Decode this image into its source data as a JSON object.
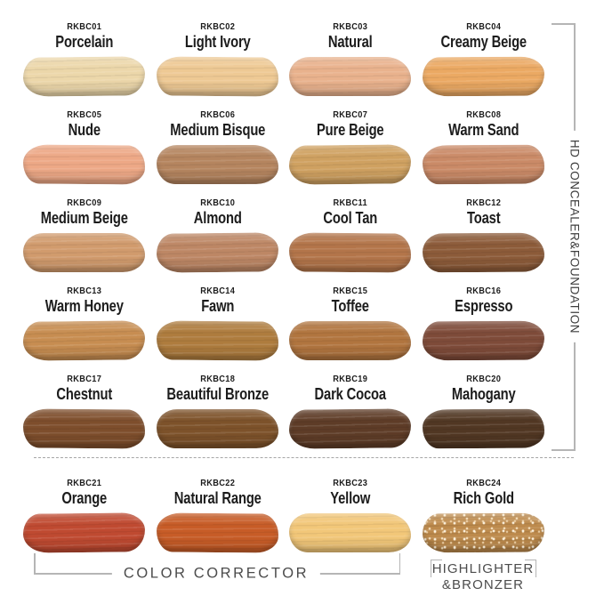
{
  "swatches": [
    {
      "code": "RKBC01",
      "name": "Porcelain",
      "color": "#ecd7aa"
    },
    {
      "code": "RKBC02",
      "name": "Light Ivory",
      "color": "#eec994"
    },
    {
      "code": "RKBC03",
      "name": "Natural",
      "color": "#e9b28d"
    },
    {
      "code": "RKBC04",
      "name": "Creamy Beige",
      "color": "#eba963"
    },
    {
      "code": "RKBC05",
      "name": "Nude",
      "color": "#eda886"
    },
    {
      "code": "RKBC06",
      "name": "Medium Bisque",
      "color": "#b5855f"
    },
    {
      "code": "RKBC07",
      "name": "Pure Beige",
      "color": "#cfa161"
    },
    {
      "code": "RKBC08",
      "name": "Warm Sand",
      "color": "#ca8a67"
    },
    {
      "code": "RKBC09",
      "name": "Medium Beige",
      "color": "#d19b6d"
    },
    {
      "code": "RKBC10",
      "name": "Almond",
      "color": "#bd8765"
    },
    {
      "code": "RKBC11",
      "name": "Cool Tan",
      "color": "#b3754a"
    },
    {
      "code": "RKBC12",
      "name": "Toast",
      "color": "#8c5b39"
    },
    {
      "code": "RKBC13",
      "name": "Warm Honey",
      "color": "#c78d51"
    },
    {
      "code": "RKBC14",
      "name": "Fawn",
      "color": "#ae7c3e"
    },
    {
      "code": "RKBC15",
      "name": "Toffee",
      "color": "#b1753f"
    },
    {
      "code": "RKBC16",
      "name": "Espresso",
      "color": "#7e4b39"
    },
    {
      "code": "RKBC17",
      "name": "Chestnut",
      "color": "#7e4e2c"
    },
    {
      "code": "RKBC18",
      "name": "Beautiful Bronze",
      "color": "#7d522a"
    },
    {
      "code": "RKBC19",
      "name": "Dark Cocoa",
      "color": "#5e3c27"
    },
    {
      "code": "RKBC20",
      "name": "Mahogany",
      "color": "#513723"
    },
    {
      "code": "RKBC21",
      "name": "Orange",
      "color": "#bf4a31"
    },
    {
      "code": "RKBC22",
      "name": "Natural Range",
      "color": "#c75c27"
    },
    {
      "code": "RKBC23",
      "name": "Yellow",
      "color": "#f2c779"
    },
    {
      "code": "RKBC24",
      "name": "Rich Gold",
      "color": "#bd8a4c"
    }
  ],
  "groups": {
    "right_label": "HD CONCEALER&FOUNDATION",
    "bottom_left_label": "COLOR CORRECTOR",
    "bottom_right_label_line1": "HIGHLIGHTER",
    "bottom_right_label_line2": "&BRONZER"
  },
  "ui_colors": {
    "bracket": "#b5b5b5",
    "right_label_text": "#3d3d3d",
    "caption_text": "#4c4c4c",
    "shade_label_text": "#1c1c1c"
  }
}
